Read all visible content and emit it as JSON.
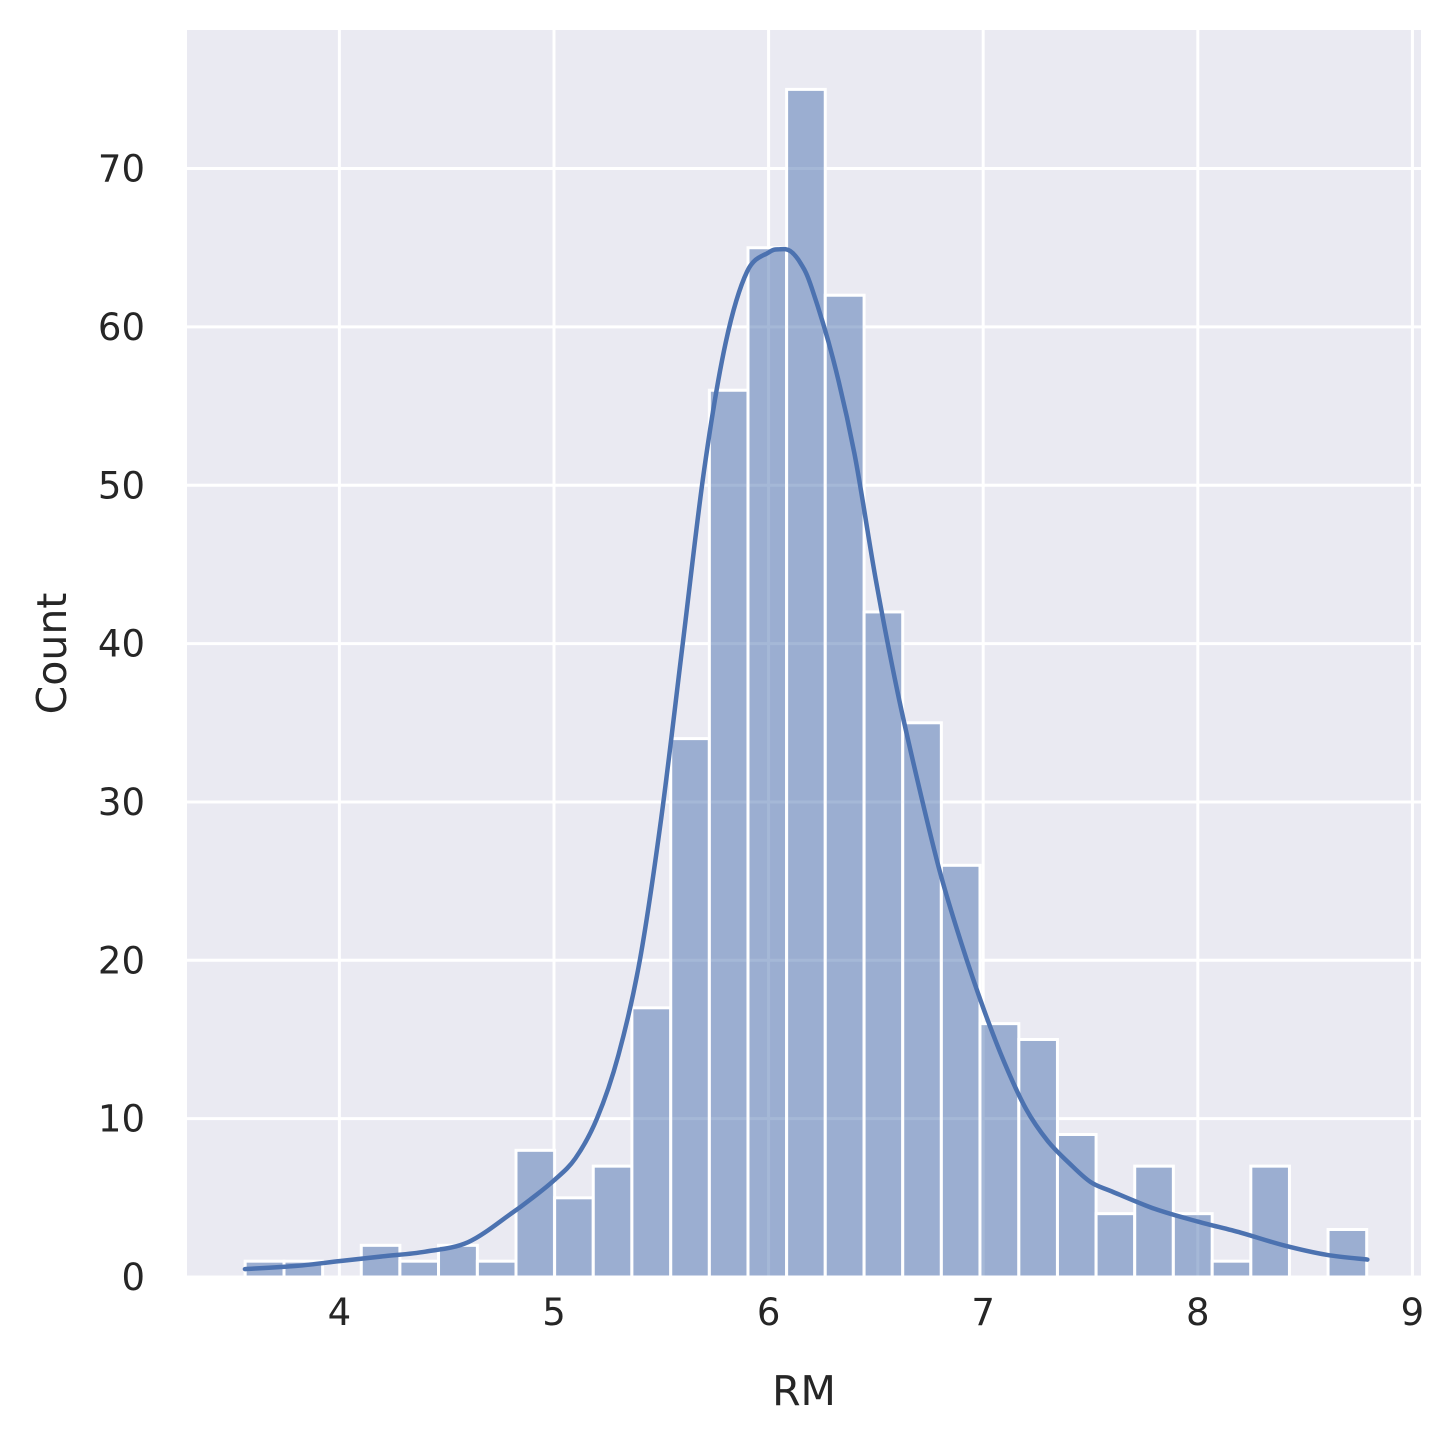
{
  "chart_data": {
    "type": "bar",
    "title": "",
    "xlabel": "RM",
    "ylabel": "Count",
    "xlim": [
      3.29,
      9.04
    ],
    "ylim": [
      0,
      78.75
    ],
    "xticks": [
      4,
      5,
      6,
      7,
      8,
      9
    ],
    "yticks": [
      0,
      10,
      20,
      30,
      40,
      50,
      60,
      70
    ],
    "grid": true,
    "legend": "none",
    "bins": [
      {
        "x0": 3.561,
        "x1": 3.742,
        "count": 1
      },
      {
        "x0": 3.742,
        "x1": 3.922,
        "count": 1
      },
      {
        "x0": 3.922,
        "x1": 4.102,
        "count": 0
      },
      {
        "x0": 4.102,
        "x1": 4.282,
        "count": 2
      },
      {
        "x0": 4.282,
        "x1": 4.462,
        "count": 1
      },
      {
        "x0": 4.462,
        "x1": 4.643,
        "count": 2
      },
      {
        "x0": 4.643,
        "x1": 4.823,
        "count": 1
      },
      {
        "x0": 4.823,
        "x1": 5.003,
        "count": 8
      },
      {
        "x0": 5.003,
        "x1": 5.183,
        "count": 5
      },
      {
        "x0": 5.183,
        "x1": 5.363,
        "count": 7
      },
      {
        "x0": 5.363,
        "x1": 5.544,
        "count": 17
      },
      {
        "x0": 5.544,
        "x1": 5.724,
        "count": 34
      },
      {
        "x0": 5.724,
        "x1": 5.904,
        "count": 56
      },
      {
        "x0": 5.904,
        "x1": 6.084,
        "count": 65
      },
      {
        "x0": 6.084,
        "x1": 6.264,
        "count": 75
      },
      {
        "x0": 6.264,
        "x1": 6.445,
        "count": 62
      },
      {
        "x0": 6.445,
        "x1": 6.625,
        "count": 42
      },
      {
        "x0": 6.625,
        "x1": 6.805,
        "count": 35
      },
      {
        "x0": 6.805,
        "x1": 6.985,
        "count": 26
      },
      {
        "x0": 6.985,
        "x1": 7.166,
        "count": 16
      },
      {
        "x0": 7.166,
        "x1": 7.346,
        "count": 15
      },
      {
        "x0": 7.346,
        "x1": 7.526,
        "count": 9
      },
      {
        "x0": 7.526,
        "x1": 7.706,
        "count": 4
      },
      {
        "x0": 7.706,
        "x1": 7.886,
        "count": 7
      },
      {
        "x0": 7.886,
        "x1": 8.067,
        "count": 4
      },
      {
        "x0": 8.067,
        "x1": 8.247,
        "count": 1
      },
      {
        "x0": 8.247,
        "x1": 8.427,
        "count": 7
      },
      {
        "x0": 8.427,
        "x1": 8.607,
        "count": 0
      },
      {
        "x0": 8.607,
        "x1": 8.787,
        "count": 3
      }
    ],
    "kde": {
      "x": [
        3.56,
        3.8,
        4.0,
        4.2,
        4.4,
        4.6,
        4.8,
        4.9,
        5.0,
        5.1,
        5.2,
        5.3,
        5.4,
        5.5,
        5.6,
        5.7,
        5.8,
        5.9,
        6.0,
        6.05,
        6.1,
        6.15,
        6.2,
        6.3,
        6.4,
        6.5,
        6.6,
        6.7,
        6.8,
        6.9,
        7.0,
        7.1,
        7.2,
        7.3,
        7.4,
        7.5,
        7.6,
        7.8,
        8.0,
        8.2,
        8.4,
        8.6,
        8.79
      ],
      "y": [
        0.5,
        0.7,
        1.0,
        1.3,
        1.6,
        2.2,
        4.0,
        5.0,
        6.1,
        7.5,
        10.0,
        14.0,
        20.0,
        29.0,
        40.0,
        51.0,
        59.0,
        63.5,
        64.7,
        64.9,
        64.8,
        64.0,
        62.5,
        58.0,
        52.0,
        44.0,
        37.0,
        31.0,
        25.5,
        21.0,
        17.0,
        13.5,
        10.6,
        8.6,
        7.2,
        6.0,
        5.4,
        4.3,
        3.5,
        2.8,
        2.0,
        1.4,
        1.1
      ]
    },
    "colors": {
      "background": "#eaeaf2",
      "grid": "#ffffff",
      "bar_fill": "#4c72b0",
      "bar_opacity": 0.5,
      "bar_edge": "#ffffff",
      "kde_line": "#4c72b0",
      "text": "#262626"
    }
  }
}
